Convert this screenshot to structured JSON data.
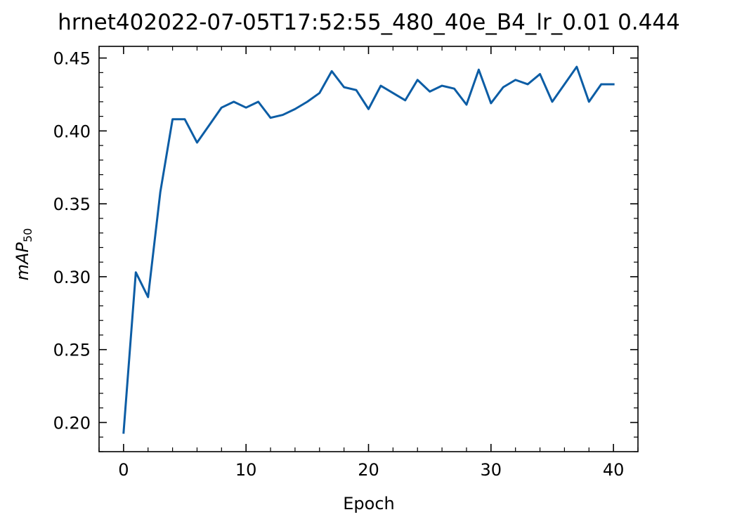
{
  "chart_data": {
    "type": "line",
    "title": "hrnet402022-07-05T17:52:55_480_40e_B4_lr_0.01 0.444",
    "xlabel": "Epoch",
    "ylabel": {
      "main": "mAP",
      "subscript": "50"
    },
    "xlim": [
      -2,
      42
    ],
    "ylim": [
      0.18,
      0.458
    ],
    "xticks": [
      0,
      10,
      20,
      30,
      40
    ],
    "xtick_labels": [
      "0",
      "10",
      "20",
      "30",
      "40"
    ],
    "yticks": [
      0.2,
      0.25,
      0.3,
      0.35,
      0.4,
      0.45
    ],
    "ytick_labels": [
      "0.20",
      "0.25",
      "0.30",
      "0.35",
      "0.40",
      "0.45"
    ],
    "grid": false,
    "line_color": "#0C5DA5",
    "series": [
      {
        "x": [
          0,
          1,
          2,
          3,
          4,
          5,
          6,
          7,
          8,
          9,
          10,
          11,
          12,
          13,
          14,
          15,
          16,
          17,
          18,
          19,
          20,
          21,
          22,
          23,
          24,
          25,
          26,
          27,
          28,
          29,
          30,
          31,
          32,
          33,
          34,
          35,
          36,
          37,
          38,
          39,
          40
        ],
        "values": [
          0.193,
          0.303,
          0.286,
          0.358,
          0.408,
          0.408,
          0.392,
          0.404,
          0.416,
          0.42,
          0.416,
          0.42,
          0.409,
          0.411,
          0.415,
          0.42,
          0.426,
          0.441,
          0.43,
          0.428,
          0.415,
          0.431,
          0.426,
          0.421,
          0.435,
          0.427,
          0.431,
          0.429,
          0.418,
          0.442,
          0.419,
          0.43,
          0.435,
          0.432,
          0.439,
          0.42,
          0.432,
          0.444,
          0.42,
          0.432,
          0.432
        ]
      }
    ]
  }
}
